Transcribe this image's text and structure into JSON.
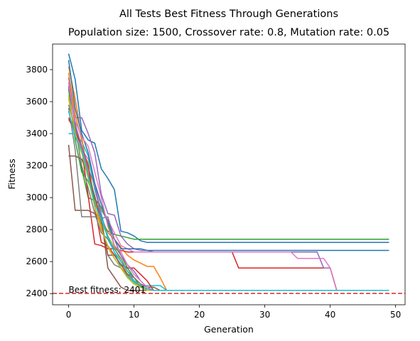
{
  "chart_data": {
    "type": "line",
    "title": "All Tests Best Fitness Through Generations",
    "subtitle": "Population size: 1500, Crossover rate: 0.8, Mutation rate: 0.05",
    "xlabel": "Generation",
    "ylabel": "Fitness",
    "xlim": [
      -2.45,
      51.45
    ],
    "ylim": [
      2330,
      3960
    ],
    "xticks": [
      0,
      10,
      20,
      30,
      40,
      50
    ],
    "yticks": [
      2400,
      2600,
      2800,
      3000,
      3200,
      3400,
      3600,
      3800
    ],
    "grid": false,
    "reference_line": {
      "y": 2401,
      "style": "dashed",
      "color": "#d62728"
    },
    "annotation": {
      "text": "Best fitness: 2401",
      "x": 0,
      "y": 2401
    },
    "colors": [
      "#1f77b4",
      "#ff7f0e",
      "#2ca02c",
      "#d62728",
      "#9467bd",
      "#8c564b",
      "#e377c2",
      "#7f7f7f",
      "#bcbd22",
      "#17becf"
    ],
    "series": [
      {
        "values": [
          3900,
          3740,
          3420,
          3360,
          3340,
          3180,
          3120,
          3050,
          2790,
          2780,
          2760,
          2730,
          2720,
          2720,
          2720,
          2720,
          2720,
          2720,
          2720,
          2720,
          2720,
          2720,
          2720,
          2720,
          2720,
          2720,
          2720,
          2720,
          2720,
          2720,
          2720,
          2720,
          2720,
          2720,
          2720,
          2720,
          2720,
          2720,
          2720,
          2720,
          2720,
          2720,
          2720,
          2720,
          2720,
          2720,
          2720,
          2720,
          2720,
          2720
        ]
      },
      {
        "values": [
          3820,
          3620,
          3380,
          3120,
          3000,
          2880,
          2780,
          2740,
          2690,
          2640,
          2610,
          2590,
          2570,
          2570,
          2500,
          2420,
          2420,
          2420,
          2420,
          2420,
          2420,
          2420,
          2420,
          2420,
          2420,
          2420,
          2420,
          2420,
          2420,
          2420,
          2420,
          2420,
          2420,
          2420,
          2420,
          2420,
          2420,
          2420,
          2420,
          2420,
          2420,
          2420,
          2420,
          2420,
          2420,
          2420,
          2420,
          2420,
          2420,
          2420
        ]
      },
      {
        "values": [
          3690,
          3480,
          3180,
          3000,
          2980,
          2840,
          2790,
          2770,
          2760,
          2750,
          2740,
          2740,
          2740,
          2740,
          2740,
          2740,
          2740,
          2740,
          2740,
          2740,
          2740,
          2740,
          2740,
          2740,
          2740,
          2740,
          2740,
          2740,
          2740,
          2740,
          2740,
          2740,
          2740,
          2740,
          2740,
          2740,
          2740,
          2740,
          2740,
          2740,
          2740,
          2740,
          2740,
          2740,
          2740,
          2740,
          2740,
          2740,
          2740,
          2740
        ]
      },
      {
        "values": [
          3500,
          3440,
          3300,
          3010,
          2710,
          2700,
          2680,
          2680,
          2670,
          2660,
          2660,
          2660,
          2660,
          2660,
          2660,
          2660,
          2660,
          2660,
          2660,
          2660,
          2660,
          2660,
          2660,
          2660,
          2660,
          2660,
          2560,
          2560,
          2560,
          2560,
          2560,
          2560,
          2560,
          2560,
          2560,
          2560,
          2560,
          2560,
          2560,
          2560,
          2560,
          2420,
          2420,
          2420,
          2420,
          2420,
          2420,
          2420,
          2420,
          2420
        ]
      },
      {
        "values": [
          3750,
          3500,
          3500,
          3400,
          3280,
          3020,
          2900,
          2890,
          2760,
          2710,
          2680,
          2670,
          2670,
          2660,
          2660,
          2660,
          2660,
          2660,
          2660,
          2660,
          2660,
          2660,
          2660,
          2660,
          2660,
          2660,
          2660,
          2660,
          2660,
          2660,
          2660,
          2660,
          2660,
          2660,
          2660,
          2660,
          2660,
          2660,
          2660,
          2560,
          2560,
          2420,
          2420,
          2420,
          2420,
          2420,
          2420,
          2420,
          2420,
          2420
        ]
      },
      {
        "values": [
          3330,
          2920,
          2920,
          2920,
          2900,
          2880,
          2560,
          2500,
          2440,
          2420,
          2420,
          2420,
          2420,
          2420,
          2420,
          2420,
          2420,
          2420,
          2420,
          2420,
          2420,
          2420,
          2420,
          2420,
          2420,
          2420,
          2420,
          2420,
          2420,
          2420,
          2420,
          2420,
          2420,
          2420,
          2420,
          2420,
          2420,
          2420,
          2420,
          2420,
          2420,
          2420,
          2420,
          2420,
          2420,
          2420,
          2420,
          2420,
          2420,
          2420
        ]
      },
      {
        "values": [
          3620,
          3430,
          3300,
          3240,
          3080,
          2920,
          2860,
          2780,
          2700,
          2680,
          2660,
          2660,
          2660,
          2660,
          2660,
          2660,
          2660,
          2660,
          2660,
          2660,
          2660,
          2660,
          2660,
          2660,
          2660,
          2660,
          2660,
          2660,
          2660,
          2660,
          2660,
          2660,
          2660,
          2660,
          2660,
          2620,
          2620,
          2620,
          2620,
          2620,
          2560,
          2420,
          2420,
          2420,
          2420,
          2420,
          2420,
          2420,
          2420,
          2420
        ]
      },
      {
        "values": [
          3560,
          3300,
          2880,
          2880,
          2880,
          2860,
          2640,
          2580,
          2560,
          2500,
          2460,
          2440,
          2420,
          2420,
          2420,
          2420,
          2420,
          2420,
          2420,
          2420,
          2420,
          2420,
          2420,
          2420,
          2420,
          2420,
          2420,
          2420,
          2420,
          2420,
          2420,
          2420,
          2420,
          2420,
          2420,
          2420,
          2420,
          2420,
          2420,
          2420,
          2420,
          2420,
          2420,
          2420,
          2420,
          2420,
          2420,
          2420,
          2420,
          2420
        ]
      },
      {
        "values": [
          3620,
          3380,
          3280,
          3220,
          2980,
          2840,
          2760,
          2690,
          2600,
          2520,
          2470,
          2440,
          2420,
          2420,
          2420,
          2420,
          2420,
          2420,
          2420,
          2420,
          2420,
          2420,
          2420,
          2420,
          2420,
          2420,
          2420,
          2420,
          2420,
          2420,
          2420,
          2420,
          2420,
          2420,
          2420,
          2420,
          2420,
          2420,
          2420,
          2420,
          2420,
          2420,
          2420,
          2420,
          2420,
          2420,
          2420,
          2420,
          2420,
          2420
        ]
      },
      {
        "values": [
          3400,
          3400,
          3350,
          3260,
          3050,
          2900,
          2740,
          2660,
          2560,
          2510,
          2470,
          2450,
          2450,
          2450,
          2450,
          2420,
          2420,
          2420,
          2420,
          2420,
          2420,
          2420,
          2420,
          2420,
          2420,
          2420,
          2420,
          2420,
          2420,
          2420,
          2420,
          2420,
          2420,
          2420,
          2420,
          2420,
          2420,
          2420,
          2420,
          2420,
          2420,
          2420,
          2420,
          2420,
          2420,
          2420,
          2420,
          2420,
          2420,
          2420
        ]
      },
      {
        "values": [
          3860,
          3560,
          3400,
          3280,
          3090,
          2960,
          2850,
          2740,
          2680,
          2680,
          2680,
          2680,
          2670,
          2670,
          2670,
          2670,
          2670,
          2670,
          2670,
          2670,
          2670,
          2670,
          2670,
          2670,
          2670,
          2670,
          2670,
          2670,
          2670,
          2670,
          2670,
          2670,
          2670,
          2670,
          2670,
          2670,
          2670,
          2670,
          2670,
          2670,
          2670,
          2670,
          2670,
          2670,
          2670,
          2670,
          2670,
          2670,
          2670,
          2670
        ]
      },
      {
        "values": [
          3780,
          3520,
          3360,
          3160,
          2990,
          2810,
          2690,
          2620,
          2560,
          2520,
          2480,
          2440,
          2420,
          2420,
          2420,
          2420,
          2420,
          2420,
          2420,
          2420,
          2420,
          2420,
          2420,
          2420,
          2420,
          2420,
          2420,
          2420,
          2420,
          2420,
          2420,
          2420,
          2420,
          2420,
          2420,
          2420,
          2420,
          2420,
          2420,
          2420,
          2420,
          2420,
          2420,
          2420,
          2420,
          2420,
          2420,
          2420,
          2420,
          2420
        ]
      },
      {
        "values": [
          3680,
          3360,
          3160,
          3100,
          2990,
          2940,
          2840,
          2700,
          2640,
          2560,
          2500,
          2440,
          2420,
          2420,
          2420,
          2420,
          2420,
          2420,
          2420,
          2420,
          2420,
          2420,
          2420,
          2420,
          2420,
          2420,
          2420,
          2420,
          2420,
          2420,
          2420,
          2420,
          2420,
          2420,
          2420,
          2420,
          2420,
          2420,
          2420,
          2420,
          2420,
          2420,
          2420,
          2420,
          2420,
          2420,
          2420,
          2420,
          2420,
          2420
        ]
      },
      {
        "values": [
          3490,
          3420,
          3320,
          3200,
          2940,
          2720,
          2700,
          2640,
          2580,
          2560,
          2560,
          2520,
          2480,
          2420,
          2420,
          2420,
          2420,
          2420,
          2420,
          2420,
          2420,
          2420,
          2420,
          2420,
          2420,
          2420,
          2420,
          2420,
          2420,
          2420,
          2420,
          2420,
          2420,
          2420,
          2420,
          2420,
          2420,
          2420,
          2420,
          2420,
          2420,
          2420,
          2420,
          2420,
          2420,
          2420,
          2420,
          2420,
          2420,
          2420
        ]
      },
      {
        "values": [
          3700,
          3460,
          3320,
          3180,
          3080,
          2870,
          2880,
          2740,
          2640,
          2580,
          2540,
          2480,
          2440,
          2420,
          2420,
          2420,
          2420,
          2420,
          2420,
          2420,
          2420,
          2420,
          2420,
          2420,
          2420,
          2420,
          2420,
          2420,
          2420,
          2420,
          2420,
          2420,
          2420,
          2420,
          2420,
          2420,
          2420,
          2420,
          2420,
          2420,
          2420,
          2420,
          2420,
          2420,
          2420,
          2420,
          2420,
          2420,
          2420,
          2420
        ]
      },
      {
        "values": [
          3260,
          3260,
          3240,
          3140,
          3010,
          2850,
          2640,
          2640,
          2580,
          2520,
          2500,
          2460,
          2440,
          2440,
          2420,
          2420,
          2420,
          2420,
          2420,
          2420,
          2420,
          2420,
          2420,
          2420,
          2420,
          2420,
          2420,
          2420,
          2420,
          2420,
          2420,
          2420,
          2420,
          2420,
          2420,
          2420,
          2420,
          2420,
          2420,
          2420,
          2420,
          2420,
          2420,
          2420,
          2420,
          2420,
          2420,
          2420,
          2420,
          2420
        ]
      },
      {
        "values": [
          3720,
          3480,
          3380,
          3320,
          3160,
          3000,
          2820,
          2700,
          2660,
          2580,
          2520,
          2480,
          2440,
          2420,
          2420,
          2420,
          2420,
          2420,
          2420,
          2420,
          2420,
          2420,
          2420,
          2420,
          2420,
          2420,
          2420,
          2420,
          2420,
          2420,
          2420,
          2420,
          2420,
          2420,
          2420,
          2420,
          2420,
          2420,
          2420,
          2420,
          2420,
          2420,
          2420,
          2420,
          2420,
          2420,
          2420,
          2420,
          2420,
          2420
        ]
      },
      {
        "values": [
          3580,
          3440,
          3200,
          3060,
          2900,
          2780,
          2740,
          2680,
          2620,
          2540,
          2500,
          2460,
          2420,
          2420,
          2420,
          2420,
          2420,
          2420,
          2420,
          2420,
          2420,
          2420,
          2420,
          2420,
          2420,
          2420,
          2420,
          2420,
          2420,
          2420,
          2420,
          2420,
          2420,
          2420,
          2420,
          2420,
          2420,
          2420,
          2420,
          2420,
          2420,
          2420,
          2420,
          2420,
          2420,
          2420,
          2420,
          2420,
          2420,
          2420
        ]
      },
      {
        "values": [
          3640,
          3400,
          3280,
          3120,
          2940,
          2800,
          2700,
          2620,
          2560,
          2500,
          2460,
          2440,
          2420,
          2420,
          2420,
          2420,
          2420,
          2420,
          2420,
          2420,
          2420,
          2420,
          2420,
          2420,
          2420,
          2420,
          2420,
          2420,
          2420,
          2420,
          2420,
          2420,
          2420,
          2420,
          2420,
          2420,
          2420,
          2420,
          2420,
          2420,
          2420,
          2420,
          2420,
          2420,
          2420,
          2420,
          2420,
          2420,
          2420,
          2420
        ]
      },
      {
        "values": [
          3540,
          3380,
          3300,
          3140,
          2960,
          2860,
          2760,
          2660,
          2600,
          2540,
          2480,
          2450,
          2430,
          2420,
          2420,
          2420,
          2420,
          2420,
          2420,
          2420,
          2420,
          2420,
          2420,
          2420,
          2420,
          2420,
          2420,
          2420,
          2420,
          2420,
          2420,
          2420,
          2420,
          2420,
          2420,
          2420,
          2420,
          2420,
          2420,
          2420,
          2420,
          2420,
          2420,
          2420,
          2420,
          2420,
          2420,
          2420,
          2420,
          2420
        ]
      }
    ]
  }
}
